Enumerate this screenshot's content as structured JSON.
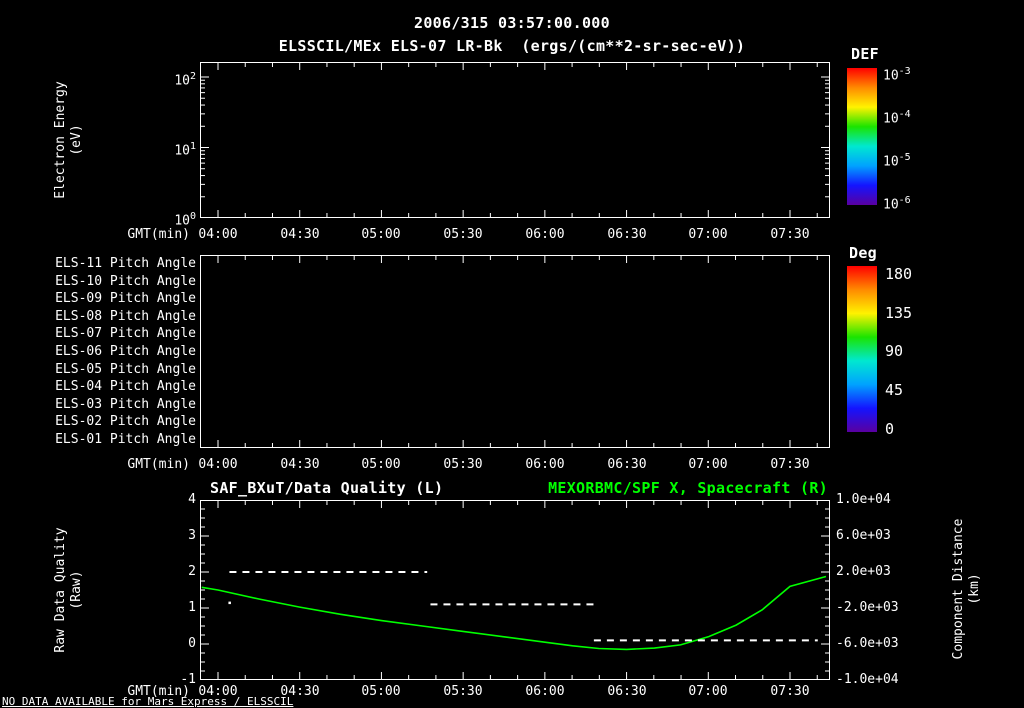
{
  "header": {
    "timestamp": "2006/315 03:57:00.000",
    "subtitle": "ELSSCIL/MEx ELS-07 LR-Bk  (ergs/(cm**2-sr-sec-eV))"
  },
  "time_axis": {
    "label": "GMT(min)",
    "ticks": [
      "04:00",
      "04:30",
      "05:00",
      "05:30",
      "06:00",
      "06:30",
      "07:00",
      "07:30"
    ]
  },
  "spectro": {
    "ylabel": [
      "Electron Energy",
      "(eV)"
    ],
    "yticks": [
      {
        "base": "10",
        "exp": "2"
      },
      {
        "base": "10",
        "exp": "1"
      },
      {
        "base": "10",
        "exp": "0"
      }
    ]
  },
  "def_colorbar": {
    "title": "DEF",
    "ticks": [
      {
        "base": "10",
        "exp": "-3"
      },
      {
        "base": "10",
        "exp": "-4"
      },
      {
        "base": "10",
        "exp": "-5"
      },
      {
        "base": "10",
        "exp": "-6"
      }
    ]
  },
  "deg_colorbar": {
    "title": "Deg",
    "ticks": [
      "180",
      "135",
      "90",
      "45",
      "0"
    ]
  },
  "pitch": {
    "rows": [
      "ELS-11 Pitch Angle",
      "ELS-10 Pitch Angle",
      "ELS-09 Pitch Angle",
      "ELS-08 Pitch Angle",
      "ELS-07 Pitch Angle",
      "ELS-06 Pitch Angle",
      "ELS-05 Pitch Angle",
      "ELS-04 Pitch Angle",
      "ELS-03 Pitch Angle",
      "ELS-02 Pitch Angle",
      "ELS-01 Pitch Angle"
    ]
  },
  "bottom": {
    "title_left": "SAF_BXuT/Data Quality (L)",
    "title_right": "MEXORBMC/SPF X, Spacecraft (R)",
    "ylabel_left": [
      "Raw Data Quality",
      "(Raw)"
    ],
    "yticks_left": [
      "4",
      "3",
      "2",
      "1",
      "0",
      "-1"
    ],
    "ylabel_right": [
      "Component Distance",
      "(km)"
    ],
    "yticks_right": [
      "1.0e+04",
      "6.0e+03",
      "2.0e+03",
      "-2.0e+03",
      "-6.0e+03",
      "-1.0e+04"
    ]
  },
  "footer": {
    "note": "NO DATA AVAILABLE for Mars Express / ELSSCIL"
  },
  "colors": {
    "accent_green": "#00ff00",
    "colorbar_rainbow": [
      "#ff0000",
      "#ff8a00",
      "#fff200",
      "#1be400",
      "#00e8d0",
      "#00a2ff",
      "#1414ff",
      "#5a00a0"
    ]
  },
  "chart_data": [
    {
      "type": "heatmap",
      "name": "electron-energy-spectrogram",
      "title": "ELSSCIL/MEx ELS-07 LR-Bk (ergs/(cm**2-sr-sec-eV))",
      "ylabel": "Electron Energy (eV)",
      "yscale": "log",
      "ylim": [
        1,
        100
      ],
      "xlabel": "GMT(min)",
      "xticks": [
        "04:00",
        "04:30",
        "05:00",
        "05:30",
        "06:00",
        "06:30",
        "07:00",
        "07:30"
      ],
      "colorbar": {
        "label": "DEF",
        "max": "1e-3",
        "min": "1e-6"
      },
      "values": [],
      "note": "no data plotted (NO DATA AVAILABLE)"
    },
    {
      "type": "heatmap",
      "name": "pitch-angle-panels",
      "rows": [
        "ELS-11",
        "ELS-10",
        "ELS-09",
        "ELS-08",
        "ELS-07",
        "ELS-06",
        "ELS-05",
        "ELS-04",
        "ELS-03",
        "ELS-02",
        "ELS-01"
      ],
      "xlabel": "GMT(min)",
      "xticks": [
        "04:00",
        "04:30",
        "05:00",
        "05:30",
        "06:00",
        "06:30",
        "07:00",
        "07:30"
      ],
      "colorbar": {
        "label": "Deg",
        "max": 180,
        "min": 0
      },
      "values": [],
      "note": "no data plotted (NO DATA AVAILABLE)"
    },
    {
      "type": "line",
      "name": "quality-and-spacecraft-distance",
      "xlabel": "GMT(min)",
      "x_hours_range": [
        3.89,
        7.75
      ],
      "xticks": [
        "04:00",
        "04:30",
        "05:00",
        "05:30",
        "06:00",
        "06:30",
        "07:00",
        "07:30"
      ],
      "left_axis": {
        "label": "Raw Data Quality (Raw)",
        "min": -1,
        "max": 4
      },
      "right_axis": {
        "label": "Component Distance (km)",
        "min": -10000,
        "max": 10000
      },
      "series": [
        {
          "name": "MEXORBMC/SPF X, Spacecraft (R)",
          "axis": "right",
          "color": "#00ff00",
          "style": "solid",
          "x_hours": [
            3.9,
            4.0,
            4.25,
            4.5,
            4.75,
            5.0,
            5.25,
            5.5,
            5.75,
            6.0,
            6.17,
            6.33,
            6.5,
            6.67,
            6.83,
            7.0,
            7.17,
            7.33,
            7.5,
            7.72
          ],
          "y_km": [
            300,
            0,
            -1000,
            -1900,
            -2700,
            -3400,
            -4000,
            -4600,
            -5200,
            -5800,
            -6200,
            -6500,
            -6600,
            -6450,
            -6100,
            -5200,
            -3900,
            -2200,
            400,
            1500
          ]
        },
        {
          "name": "SAF_BXuT/Data Quality (L)",
          "axis": "left",
          "color": "#ffffff",
          "style": "dashed",
          "segments": [
            {
              "quality": 2.0,
              "x_start_hours": 4.07,
              "x_end_hours": 5.28
            },
            {
              "quality": 1.1,
              "x_start_hours": 5.3,
              "x_end_hours": 6.33
            },
            {
              "quality": 0.1,
              "x_start_hours": 6.3,
              "x_end_hours": 7.67
            }
          ],
          "isolated_points": [
            {
              "x_hours": 4.07,
              "quality": 1.15
            }
          ]
        }
      ]
    }
  ]
}
